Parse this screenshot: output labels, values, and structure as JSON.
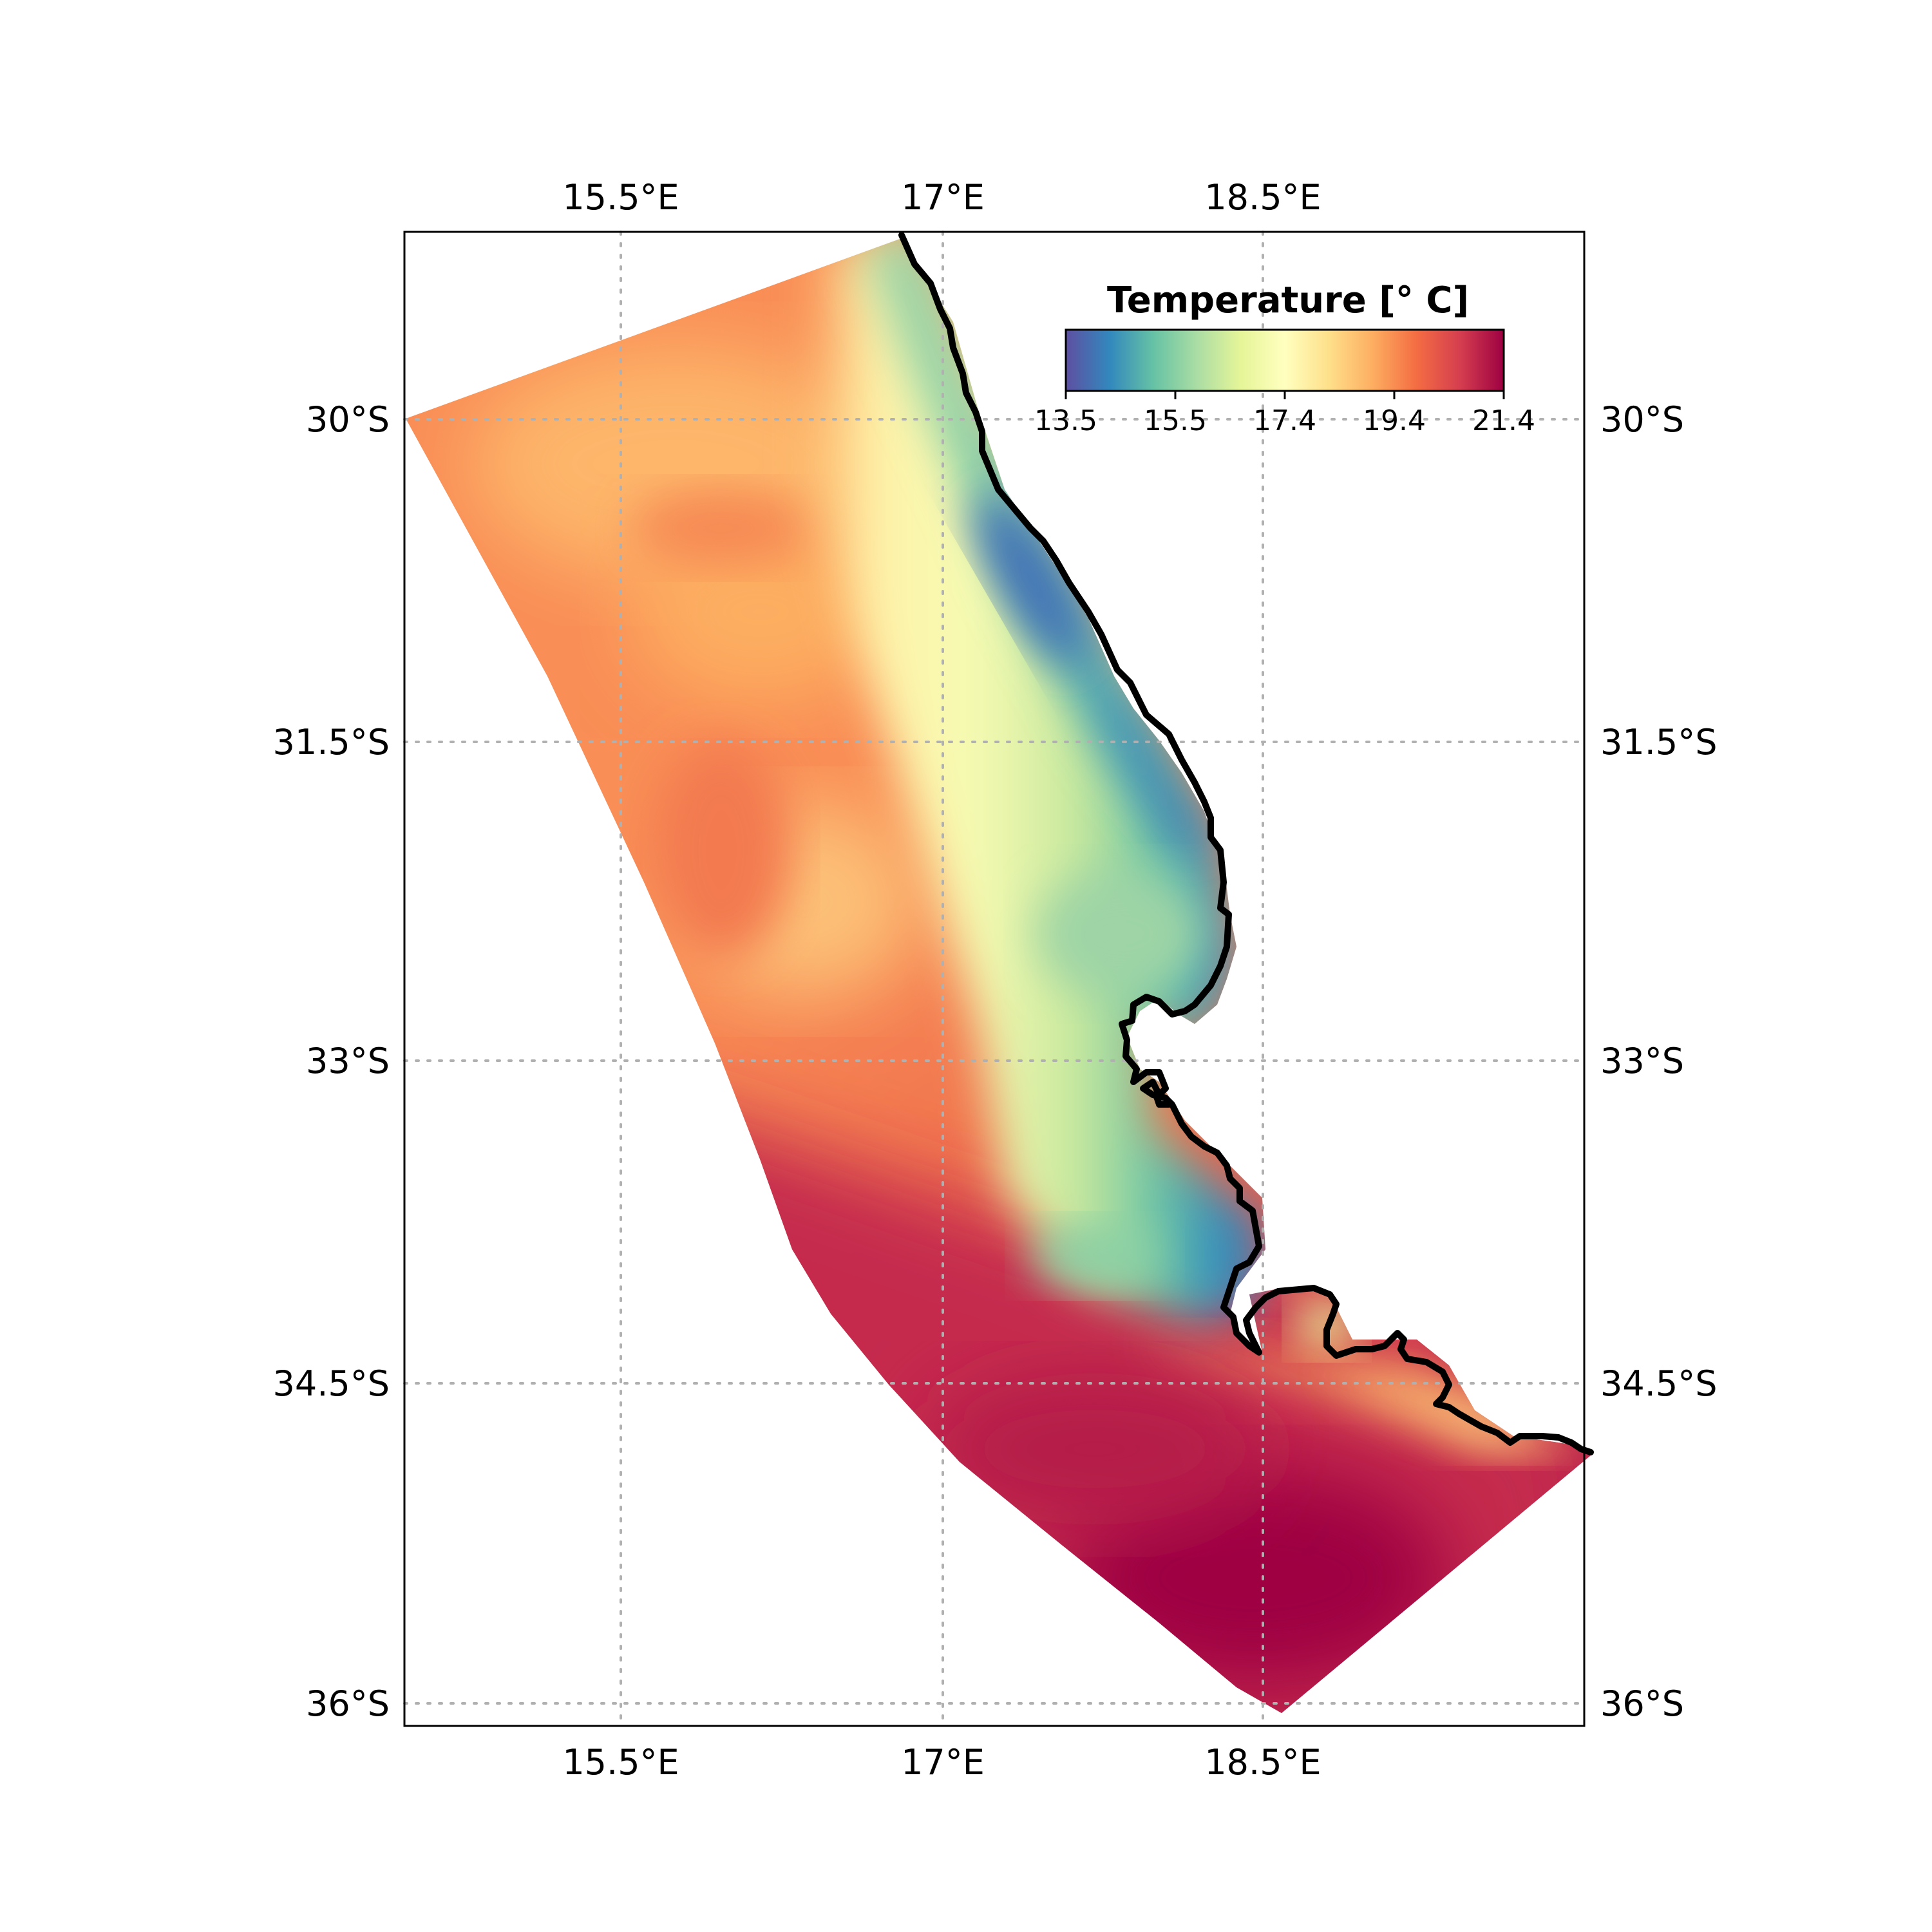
{
  "map": {
    "colorbar": {
      "title": "Temperature [$^{\\circ}$ C]",
      "title_display": "Temperature [° C]",
      "min": 13.5,
      "max": 21.4,
      "ticks": [
        "13.5",
        "15.5",
        "17.4",
        "19.4",
        "21.4"
      ],
      "colormap": "Spectral_r",
      "colors": [
        "#5e4fa2",
        "#3288bd",
        "#66c2a5",
        "#abdda4",
        "#e6f598",
        "#ffffbf",
        "#fee08b",
        "#fdae61",
        "#f46d43",
        "#d53e4f",
        "#9e0142"
      ]
    },
    "lon_labels": [
      "15.5°E",
      "17°E",
      "18.5°E"
    ],
    "lat_labels": [
      "30°S",
      "31.5°S",
      "33°S",
      "34.5°S",
      "36°S"
    ],
    "coastline_color": "#000000",
    "gridline_color": "#b0b0b0"
  }
}
